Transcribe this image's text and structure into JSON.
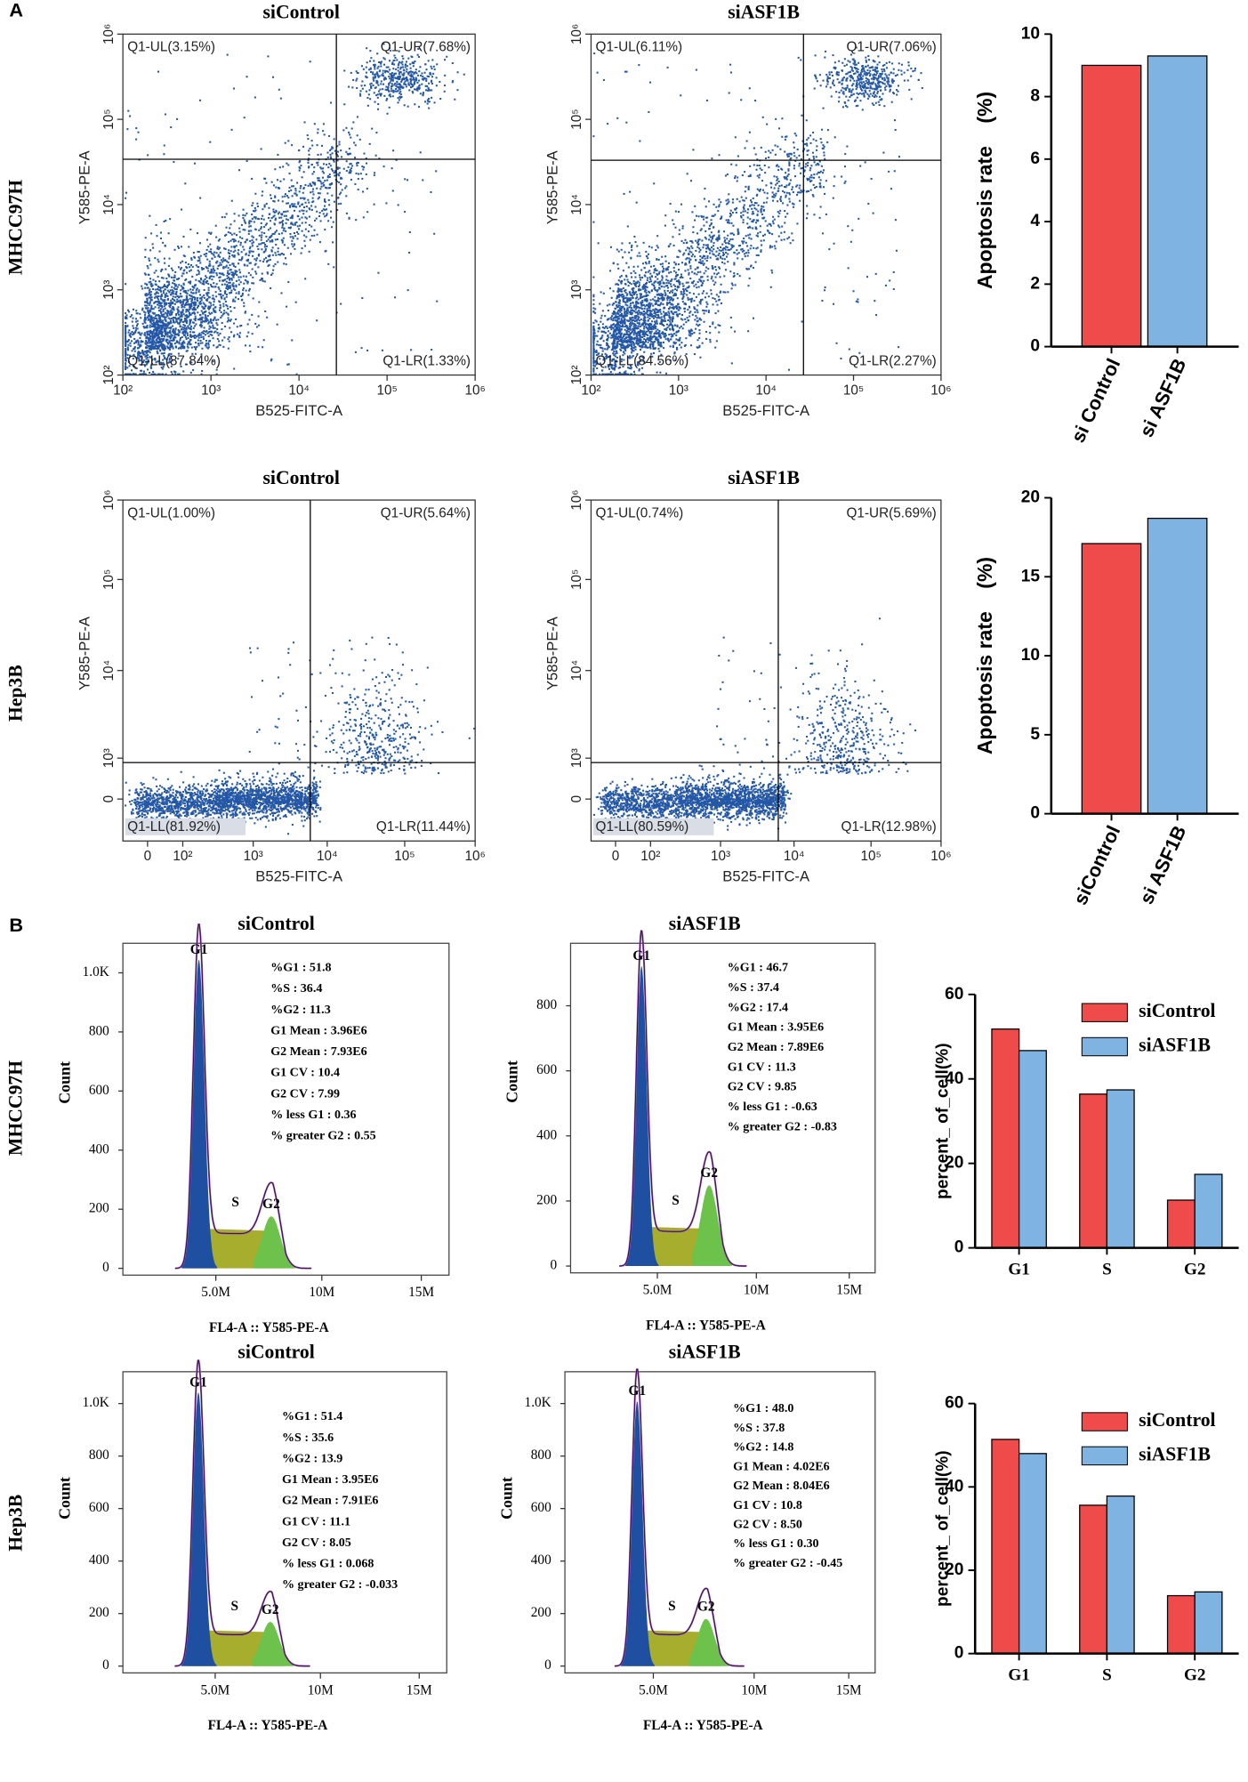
{
  "panel_labels": [
    "A",
    "B"
  ],
  "row_labels": [
    "MHCC97H",
    "Hep3B",
    "MHCC97H",
    "Hep3B"
  ],
  "flow_plots": [
    {
      "title": "siControl",
      "quadrants": [
        "Q1-UL(3.15%)",
        "Q1-UR(7.68%)",
        "Q1-LL(87.84%)",
        "Q1-LR(1.33%)"
      ],
      "x_label": "B525-FITC-A",
      "y_label": "Y585-PE-A",
      "xticks": [
        "10²",
        "10³",
        "10⁴",
        "10⁵",
        "10⁶"
      ],
      "yticks": [
        "10²",
        "10³",
        "10⁴",
        "10⁵",
        "10⁶"
      ]
    },
    {
      "title": "siASF1B",
      "quadrants": [
        "Q1-UL(6.11%)",
        "Q1-UR(7.06%)",
        "Q1-LL(84.56%)",
        "Q1-LR(2.27%)"
      ],
      "x_label": "B525-FITC-A",
      "y_label": "Y585-PE-A",
      "xticks": [
        "10²",
        "10³",
        "10⁴",
        "10⁵",
        "10⁶"
      ],
      "yticks": [
        "10²",
        "10³",
        "10⁴",
        "10⁵",
        "10⁶"
      ]
    },
    {
      "title": "siControl",
      "quadrants": [
        "Q1-UL(1.00%)",
        "Q1-UR(5.64%)",
        "Q1-LL(81.92%)",
        "Q1-LR(11.44%)"
      ],
      "x_label": "B525-FITC-A",
      "y_label": "Y585-PE-A",
      "xticks": [
        "0",
        "10²",
        "10³",
        "10⁴",
        "10⁵",
        "10⁶"
      ],
      "yticks": [
        "0",
        "10³",
        "10⁴",
        "10⁵",
        "10⁶"
      ]
    },
    {
      "title": "siASF1B",
      "quadrants": [
        "Q1-UL(0.74%)",
        "Q1-UR(5.69%)",
        "Q1-LL(80.59%)",
        "Q1-LR(12.98%)"
      ],
      "x_label": "B525-FITC-A",
      "y_label": "Y585-PE-A",
      "xticks": [
        "0",
        "10²",
        "10³",
        "10⁴",
        "10⁵",
        "10⁶"
      ],
      "yticks": [
        "0",
        "10³",
        "10⁴",
        "10⁵",
        "10⁶"
      ]
    }
  ],
  "cycle_plots": [
    {
      "title": "siControl",
      "stats": [
        "%G1 : 51.8",
        "%S : 36.4",
        "%G2 : 11.3",
        "G1 Mean : 3.96E6",
        "G2 Mean : 7.93E6",
        "G1 CV : 10.4",
        "G2 CV : 7.99",
        "% less G1 : 0.36",
        "% greater G2 : 0.55"
      ],
      "peaks": [
        "G1",
        "S",
        "G2"
      ],
      "yticks": [
        "0",
        "200",
        "400",
        "600",
        "800",
        "1.0K"
      ],
      "xticks": [
        "5.0M",
        "10M",
        "15M"
      ],
      "y_label": "Count",
      "x_label": "FL4-A :: Y585-PE-A"
    },
    {
      "title": "siASF1B",
      "stats": [
        "%G1 : 46.7",
        "%S : 37.4",
        "%G2 : 17.4",
        "G1 Mean : 3.95E6",
        "G2 Mean : 7.89E6",
        "G1 CV : 11.3",
        "G2 CV : 9.85",
        "% less G1 : -0.63",
        "% greater G2 : -0.83"
      ],
      "peaks": [
        "G1",
        "S",
        "G2"
      ],
      "yticks": [
        "0",
        "200",
        "400",
        "600",
        "800"
      ],
      "xticks": [
        "5.0M",
        "10M",
        "15M"
      ],
      "y_label": "Count",
      "x_label": "FL4-A :: Y585-PE-A"
    },
    {
      "title": "siControl",
      "stats": [
        "%G1 : 51.4",
        "%S : 35.6",
        "%G2 : 13.9",
        "G1 Mean : 3.95E6",
        "G2 Mean : 7.91E6",
        "G1 CV : 11.1",
        "G2 CV : 8.05",
        "% less G1 : 0.068",
        "% greater G2 : -0.033"
      ],
      "peaks": [
        "G1",
        "S",
        "G2"
      ],
      "yticks": [
        "0",
        "200",
        "400",
        "600",
        "800",
        "1.0K"
      ],
      "xticks": [
        "5.0M",
        "10M",
        "15M"
      ],
      "y_label": "Count",
      "x_label": "FL4-A :: Y585-PE-A"
    },
    {
      "title": "siASF1B",
      "stats": [
        "%G1 : 48.0",
        "%S : 37.8",
        "%G2 : 14.8",
        "G1 Mean : 4.02E6",
        "G2 Mean : 8.04E6",
        "G1 CV : 10.8",
        "G2 CV : 8.50",
        "% less G1 : 0.30",
        "% greater G2 : -0.45"
      ],
      "peaks": [
        "G1",
        "S",
        "G2"
      ],
      "yticks": [
        "0",
        "200",
        "400",
        "600",
        "800",
        "1.0K"
      ],
      "xticks": [
        "5.0M",
        "10M",
        "15M"
      ],
      "y_label": "Count",
      "x_label": "FL4-A :: Y585-PE-A"
    }
  ],
  "chart_data": [
    {
      "type": "bar",
      "y_label": "Apoptosis rate    (%)",
      "categories": [
        "si Control",
        "si ASF1B"
      ],
      "values": [
        9.0,
        9.3
      ],
      "colors": [
        "#ef4b4b",
        "#7fb3e2"
      ],
      "ylim": [
        0,
        10
      ],
      "yticks": [
        0,
        2,
        4,
        6,
        8,
        10
      ]
    },
    {
      "type": "bar",
      "y_label": "Apoptosis rate    (%)",
      "categories": [
        "siControl",
        "si ASF1B"
      ],
      "values": [
        17.1,
        18.7
      ],
      "colors": [
        "#ef4b4b",
        "#7fb3e2"
      ],
      "ylim": [
        0,
        20
      ],
      "yticks": [
        0,
        5,
        10,
        15,
        20
      ]
    },
    {
      "type": "bar",
      "y_label": "percent_ of_cell(%)",
      "categories": [
        "G1",
        "S",
        "G2"
      ],
      "series": [
        {
          "name": "siControl",
          "color": "#ef4b4b",
          "values": [
            51.8,
            36.4,
            11.3
          ]
        },
        {
          "name": "siASF1B",
          "color": "#7fb3e2",
          "values": [
            46.7,
            37.4,
            17.4
          ]
        }
      ],
      "legend": "top-right",
      "ylim": [
        0,
        60
      ],
      "yticks": [
        0,
        20,
        40,
        60
      ]
    },
    {
      "type": "bar",
      "y_label": "percent_ of_cell(%)",
      "categories": [
        "G1",
        "S",
        "G2"
      ],
      "series": [
        {
          "name": "siControl",
          "color": "#ef4b4b",
          "values": [
            51.4,
            35.6,
            13.9
          ]
        },
        {
          "name": "siASF1B",
          "color": "#7fb3e2",
          "values": [
            48.0,
            37.8,
            14.8
          ]
        }
      ],
      "legend": "top-right",
      "ylim": [
        0,
        60
      ],
      "yticks": [
        0,
        20,
        40,
        60
      ]
    }
  ]
}
